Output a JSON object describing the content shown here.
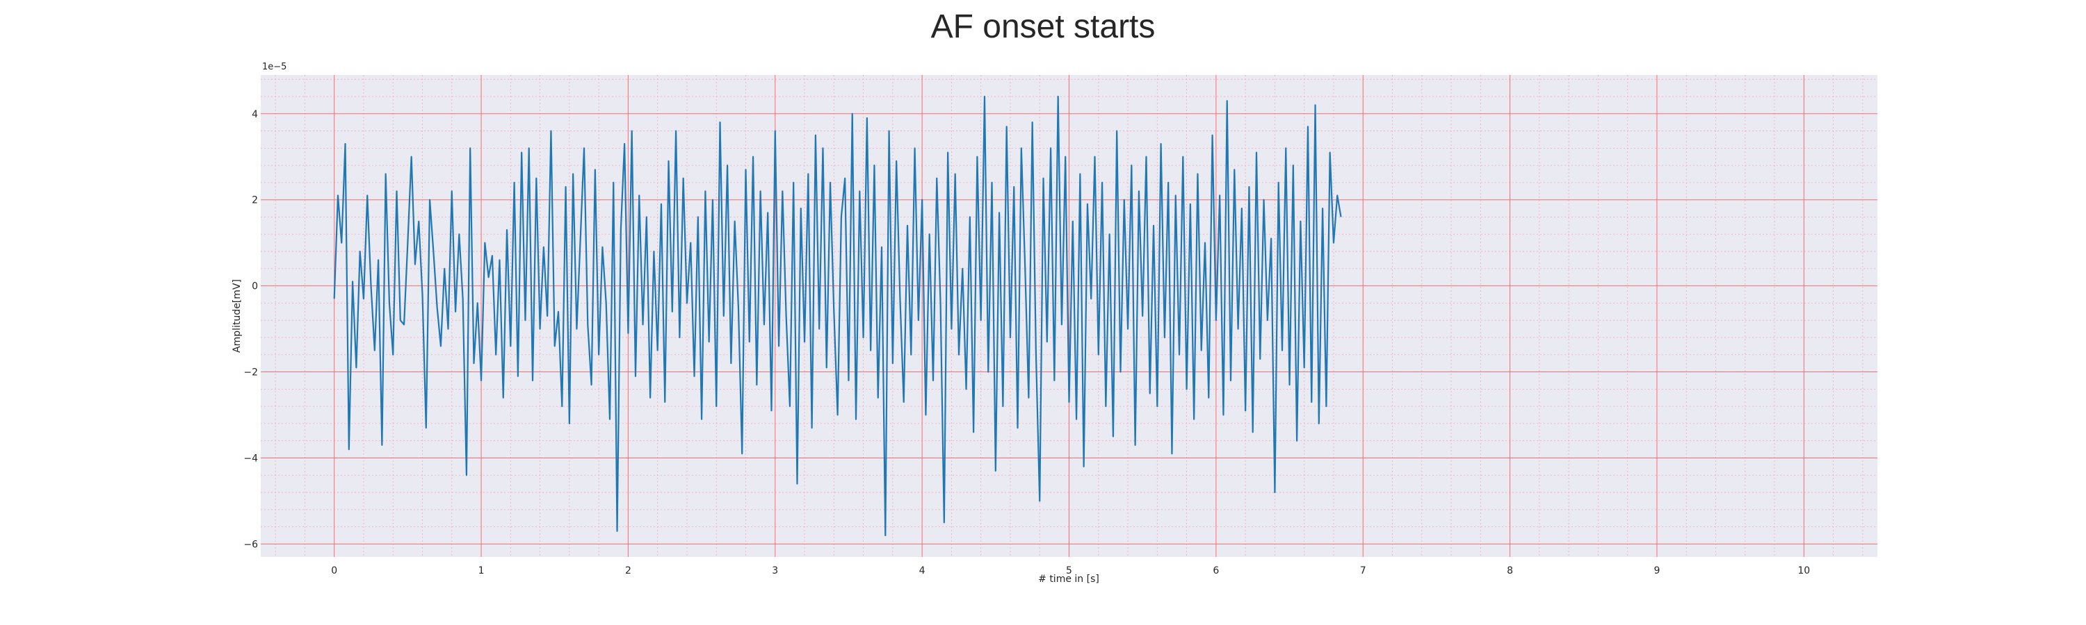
{
  "chart_data": {
    "type": "line",
    "title": "AF onset starts",
    "xlabel": "# time in [s]",
    "ylabel": "Amplitude[mV]",
    "y_offset_text": "1e−5",
    "xlim": [
      -0.5,
      10.5
    ],
    "ylim": [
      -6.3,
      4.9
    ],
    "x_ticks": [
      0,
      1,
      2,
      3,
      4,
      5,
      6,
      7,
      8,
      9,
      10
    ],
    "x_tick_labels": [
      "0",
      "1",
      "2",
      "3",
      "4",
      "5",
      "6",
      "7",
      "8",
      "9",
      "10"
    ],
    "y_ticks": [
      -6,
      -4,
      -2,
      0,
      2,
      4
    ],
    "y_tick_labels": [
      "−6",
      "−4",
      "−2",
      "0",
      "2",
      "4"
    ],
    "grid": true,
    "minor_grid": true,
    "colors": {
      "background": "#eaeaf2",
      "major_grid": "#ff6b6b",
      "minor_grid": "#f4a7b9",
      "line": "#1f77b4"
    },
    "series": [
      {
        "values_x_step": 0.025,
        "x_start": 0,
        "y": [
          -0.3,
          2.1,
          1.0,
          3.3,
          -3.8,
          0.1,
          -1.9,
          0.8,
          -0.3,
          2.1,
          0.0,
          -1.5,
          0.6,
          -3.7,
          2.6,
          -0.4,
          -1.6,
          2.2,
          -0.8,
          -0.9,
          1.0,
          3.0,
          0.5,
          1.5,
          -0.2,
          -3.3,
          2.0,
          0.8,
          -0.5,
          -1.4,
          0.4,
          -1.0,
          2.2,
          -0.6,
          1.2,
          -0.3,
          -4.4,
          3.2,
          -1.8,
          -0.4,
          -2.2,
          1.0,
          0.2,
          0.7,
          -1.6,
          0.6,
          -2.6,
          1.3,
          -1.4,
          2.4,
          -2.1,
          3.1,
          -0.8,
          3.2,
          -2.2,
          2.5,
          -1.0,
          0.9,
          -0.7,
          3.6,
          -1.4,
          -0.6,
          -2.8,
          2.3,
          -3.2,
          2.6,
          -1.0,
          1.1,
          3.2,
          -0.9,
          -2.3,
          2.7,
          -1.6,
          0.9,
          -0.4,
          -3.1,
          2.4,
          -5.7,
          1.3,
          3.3,
          -1.1,
          3.6,
          -2.1,
          2.1,
          -0.9,
          1.6,
          -2.6,
          0.8,
          -1.5,
          1.9,
          -2.7,
          2.9,
          -0.6,
          3.6,
          -1.2,
          2.5,
          -0.4,
          1.0,
          -2.1,
          1.6,
          -3.1,
          2.2,
          -1.3,
          2.0,
          -2.8,
          3.8,
          -0.7,
          2.8,
          -1.8,
          1.5,
          -0.5,
          -3.9,
          2.7,
          -1.3,
          3.0,
          -2.3,
          2.2,
          -0.9,
          1.7,
          -2.9,
          3.6,
          -1.4,
          2.2,
          -0.7,
          -2.8,
          2.4,
          -4.6,
          1.8,
          -1.3,
          2.6,
          -3.3,
          3.5,
          -1.0,
          3.2,
          -1.9,
          2.4,
          -0.6,
          -3.0,
          1.6,
          2.5,
          -2.2,
          4.0,
          -3.1,
          2.2,
          -1.2,
          3.9,
          -1.5,
          2.8,
          -2.6,
          0.9,
          -5.8,
          3.6,
          -1.8,
          2.9,
          -0.3,
          -2.7,
          1.4,
          -1.6,
          3.2,
          -0.8,
          2.0,
          -3.0,
          1.2,
          -2.2,
          2.5,
          -0.4,
          -5.5,
          3.1,
          -1.0,
          2.6,
          -1.6,
          0.4,
          -2.4,
          1.6,
          -3.4,
          3.0,
          -0.8,
          4.4,
          -2.0,
          2.4,
          -4.3,
          1.7,
          -2.8,
          3.7,
          -1.2,
          2.3,
          -3.3,
          3.2,
          0.5,
          -2.6,
          3.8,
          -1.6,
          -5.0,
          2.5,
          -1.3,
          3.2,
          -2.2,
          4.4,
          -0.9,
          3.0,
          -2.7,
          1.5,
          -3.1,
          2.6,
          -4.2,
          1.9,
          -0.3,
          3.0,
          -1.6,
          2.4,
          -2.8,
          1.2,
          -3.5,
          3.6,
          -2.0,
          2.0,
          -1.0,
          2.8,
          -3.7,
          2.2,
          -0.7,
          3.0,
          -2.5,
          1.4,
          -2.8,
          3.3,
          -1.2,
          2.4,
          -3.9,
          2.1,
          -1.6,
          3.0,
          -2.4,
          1.9,
          -3.1,
          2.6,
          -1.5,
          1.0,
          -2.6,
          3.5,
          -0.8,
          2.1,
          -3.0,
          4.3,
          -2.2,
          2.7,
          -1.0,
          1.8,
          -2.9,
          2.3,
          -3.4,
          3.1,
          -1.7,
          2.0,
          -0.8,
          1.1,
          -4.8,
          2.4,
          -1.5,
          3.2,
          -2.3,
          2.8,
          -3.6,
          1.5,
          -1.9,
          3.7,
          -2.7,
          4.2,
          -3.2,
          1.8,
          -2.8,
          3.1,
          1.0,
          2.1,
          1.6
        ]
      }
    ]
  }
}
